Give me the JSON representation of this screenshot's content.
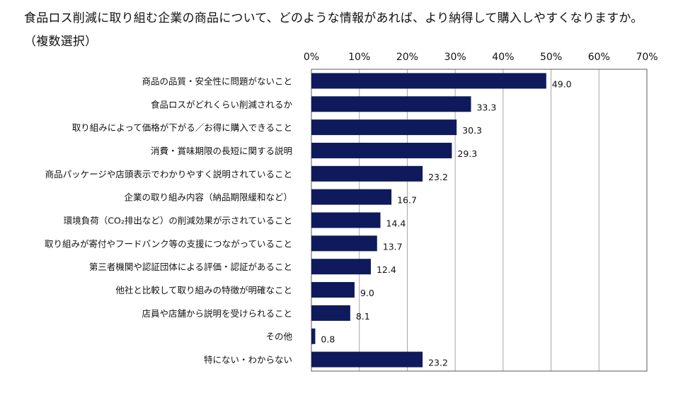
{
  "chart_data": {
    "type": "bar",
    "orientation": "horizontal",
    "title": "食品ロス削減に取り組む企業の商品について、どのような情報があれば、より納得して購入しやすくなりますか。（複数選択）",
    "categories": [
      "商品の品質・安全性に問題がないこと",
      "食品ロスがどれくらい削減されるか",
      "取り組みによって価格が下がる／お得に購入できること",
      "消費・賞味期限の長短に関する説明",
      "商品パッケージや店頭表示でわかりやすく説明されていること",
      "企業の取り組み内容（納品期限緩和など）",
      "環境負荷（CO₂排出など）の削減効果が示されていること",
      "取り組みが寄付やフードバンク等の支援につながっていること",
      "第三者機関や認証団体による評価・認証があること",
      "他社と比較して取り組みの特徴が明確なこと",
      "店員や店舗から説明を受けられること",
      "その他",
      "特にない・わからない"
    ],
    "values": [
      49.0,
      33.3,
      30.3,
      29.3,
      23.2,
      16.7,
      14.4,
      13.7,
      12.4,
      9.0,
      8.1,
      0.8,
      23.2
    ],
    "value_labels": [
      "49.0",
      "33.3",
      "30.3",
      "29.3",
      "23.2",
      "16.7",
      "14.4",
      "13.7",
      "12.4",
      "9.0",
      "8.1",
      "0.8",
      "23.2"
    ],
    "xlim": [
      0,
      70
    ],
    "x_ticks": [
      0,
      10,
      20,
      30,
      40,
      50,
      60,
      70
    ],
    "x_tick_labels": [
      "0%",
      "10%",
      "20%",
      "30%",
      "40%",
      "50%",
      "60%",
      "70%"
    ],
    "x_axis_position": "top",
    "grid": true,
    "legend": "none",
    "bar_color": "#0f1a5c",
    "grid_color": "#a6a6a6"
  }
}
